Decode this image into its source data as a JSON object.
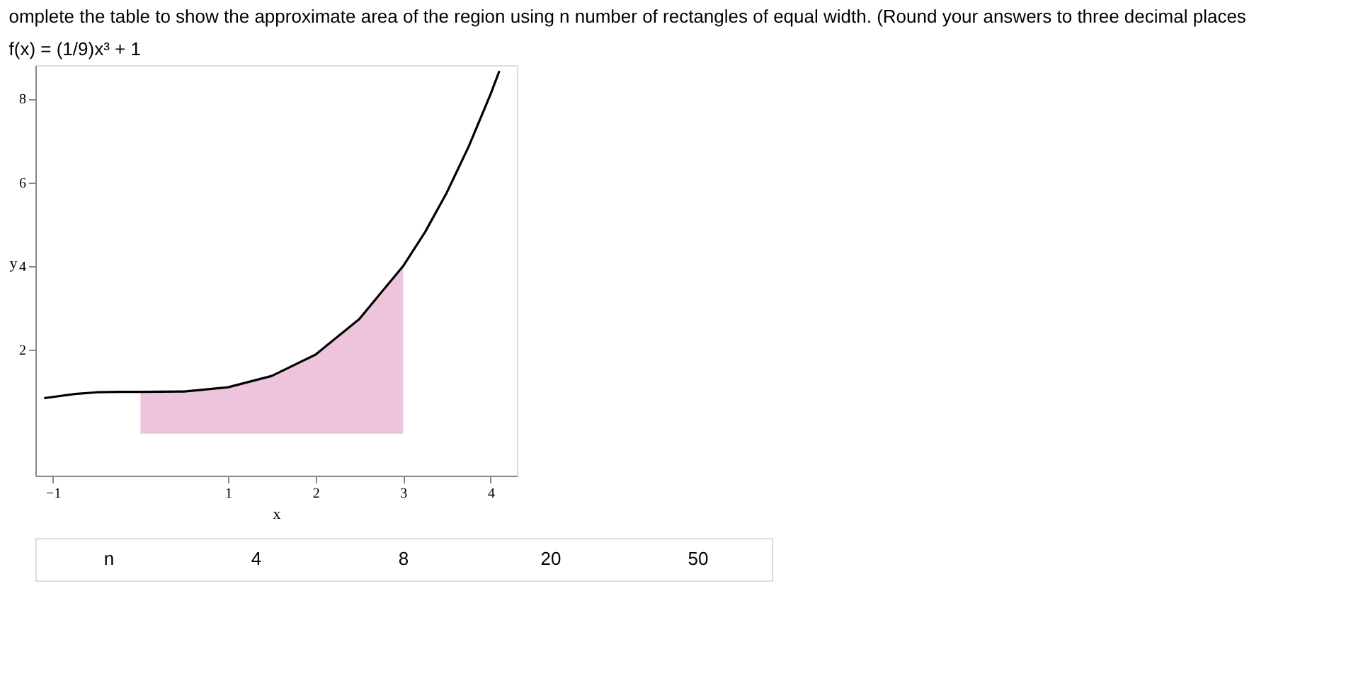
{
  "chart_data": {
    "type": "line",
    "title": "omplete the table to show the approximate area of the region using n number of rectangles of equal width. (Round your answers to three decimal places",
    "subtitle": "f(x) = (1/9)x³ + 1",
    "xlabel": "x",
    "ylabel": "y",
    "xlim": [
      -1.2,
      4.3
    ],
    "ylim": [
      -1,
      8.8
    ],
    "xticks": [
      -1,
      1,
      2,
      3,
      4
    ],
    "yticks": [
      2,
      4,
      6,
      8
    ],
    "grid": false,
    "series": [
      {
        "type": "area",
        "color": "#eec4dc",
        "x": [
          0,
          0.25,
          0.5,
          0.75,
          1,
          1.25,
          1.5,
          1.75,
          2,
          2.25,
          2.5,
          2.75,
          3
        ],
        "values": [
          1,
          1.0,
          1.01,
          1.05,
          1.11,
          1.22,
          1.38,
          1.6,
          1.89,
          2.27,
          2.74,
          3.31,
          4
        ]
      },
      {
        "color": "#000000",
        "x": [
          -1.1,
          -0.75,
          -0.5,
          -0.25,
          0,
          0.5,
          1,
          1.5,
          2,
          2.5,
          3,
          3.25,
          3.5,
          3.75,
          4,
          4.1
        ],
        "values": [
          0.85,
          0.95,
          0.99,
          1.0,
          1,
          1.01,
          1.11,
          1.38,
          1.89,
          2.74,
          4,
          4.81,
          5.76,
          6.86,
          8.11,
          8.66
        ]
      }
    ],
    "annotations": [
      "n",
      "4",
      "8",
      "20",
      "50"
    ]
  }
}
